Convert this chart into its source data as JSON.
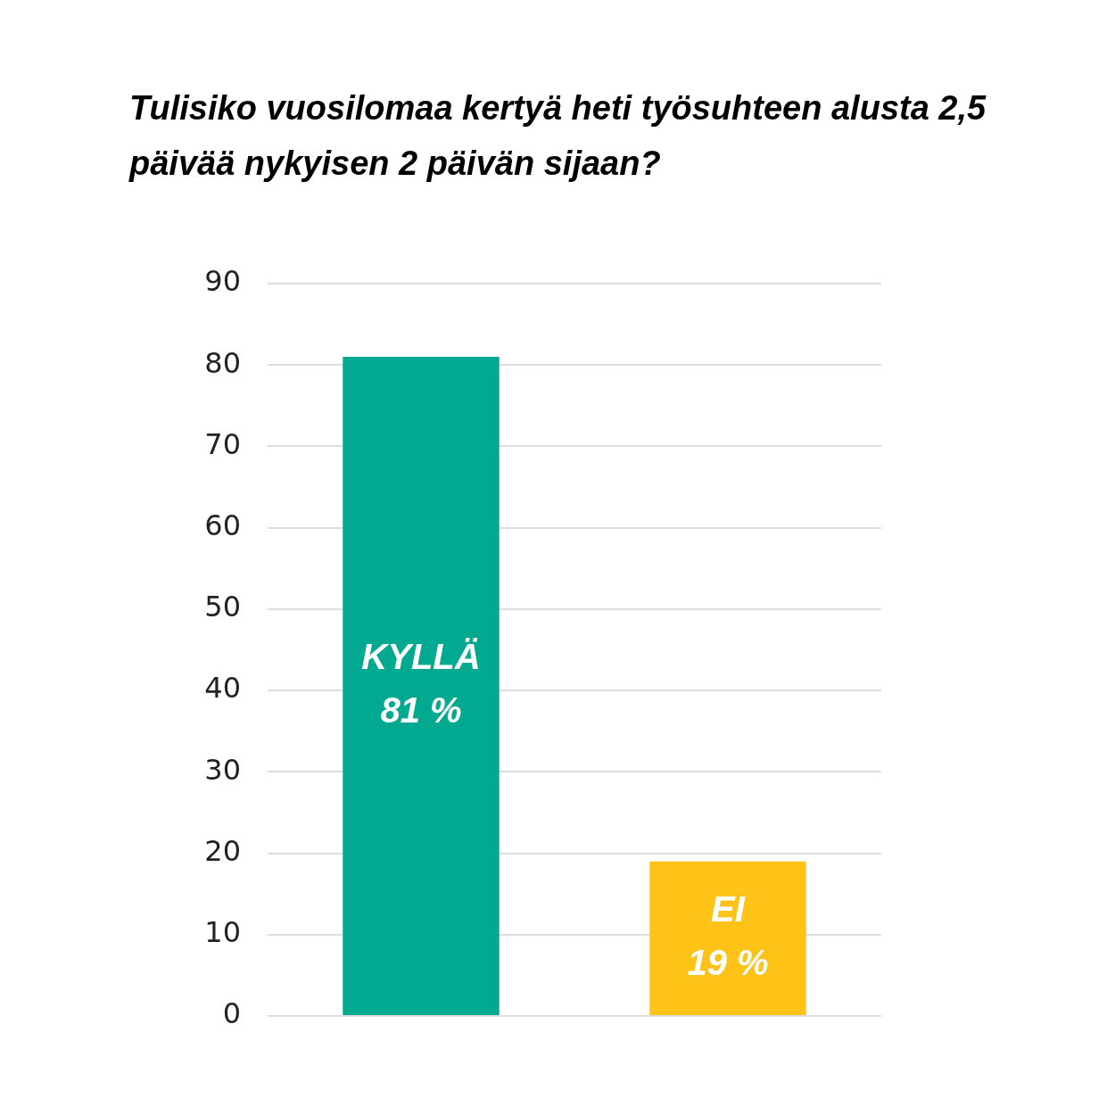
{
  "chart_data": {
    "type": "bar",
    "title": "Tulisiko vuosilomaa kertyä heti työsuhteen alusta 2,5 päivää nykyisen 2 päivän sijaan?",
    "categories": [
      "KYLLÄ",
      "EI"
    ],
    "values": [
      81,
      19
    ],
    "colors": [
      "#00a98f",
      "#ffc217"
    ],
    "value_labels": [
      "81 %",
      "19 %"
    ],
    "ylim": [
      0,
      90
    ],
    "yticks": [
      0,
      10,
      20,
      30,
      40,
      50,
      60,
      70,
      80,
      90
    ],
    "grid": "y",
    "tick_labels": "y",
    "legend": false
  }
}
